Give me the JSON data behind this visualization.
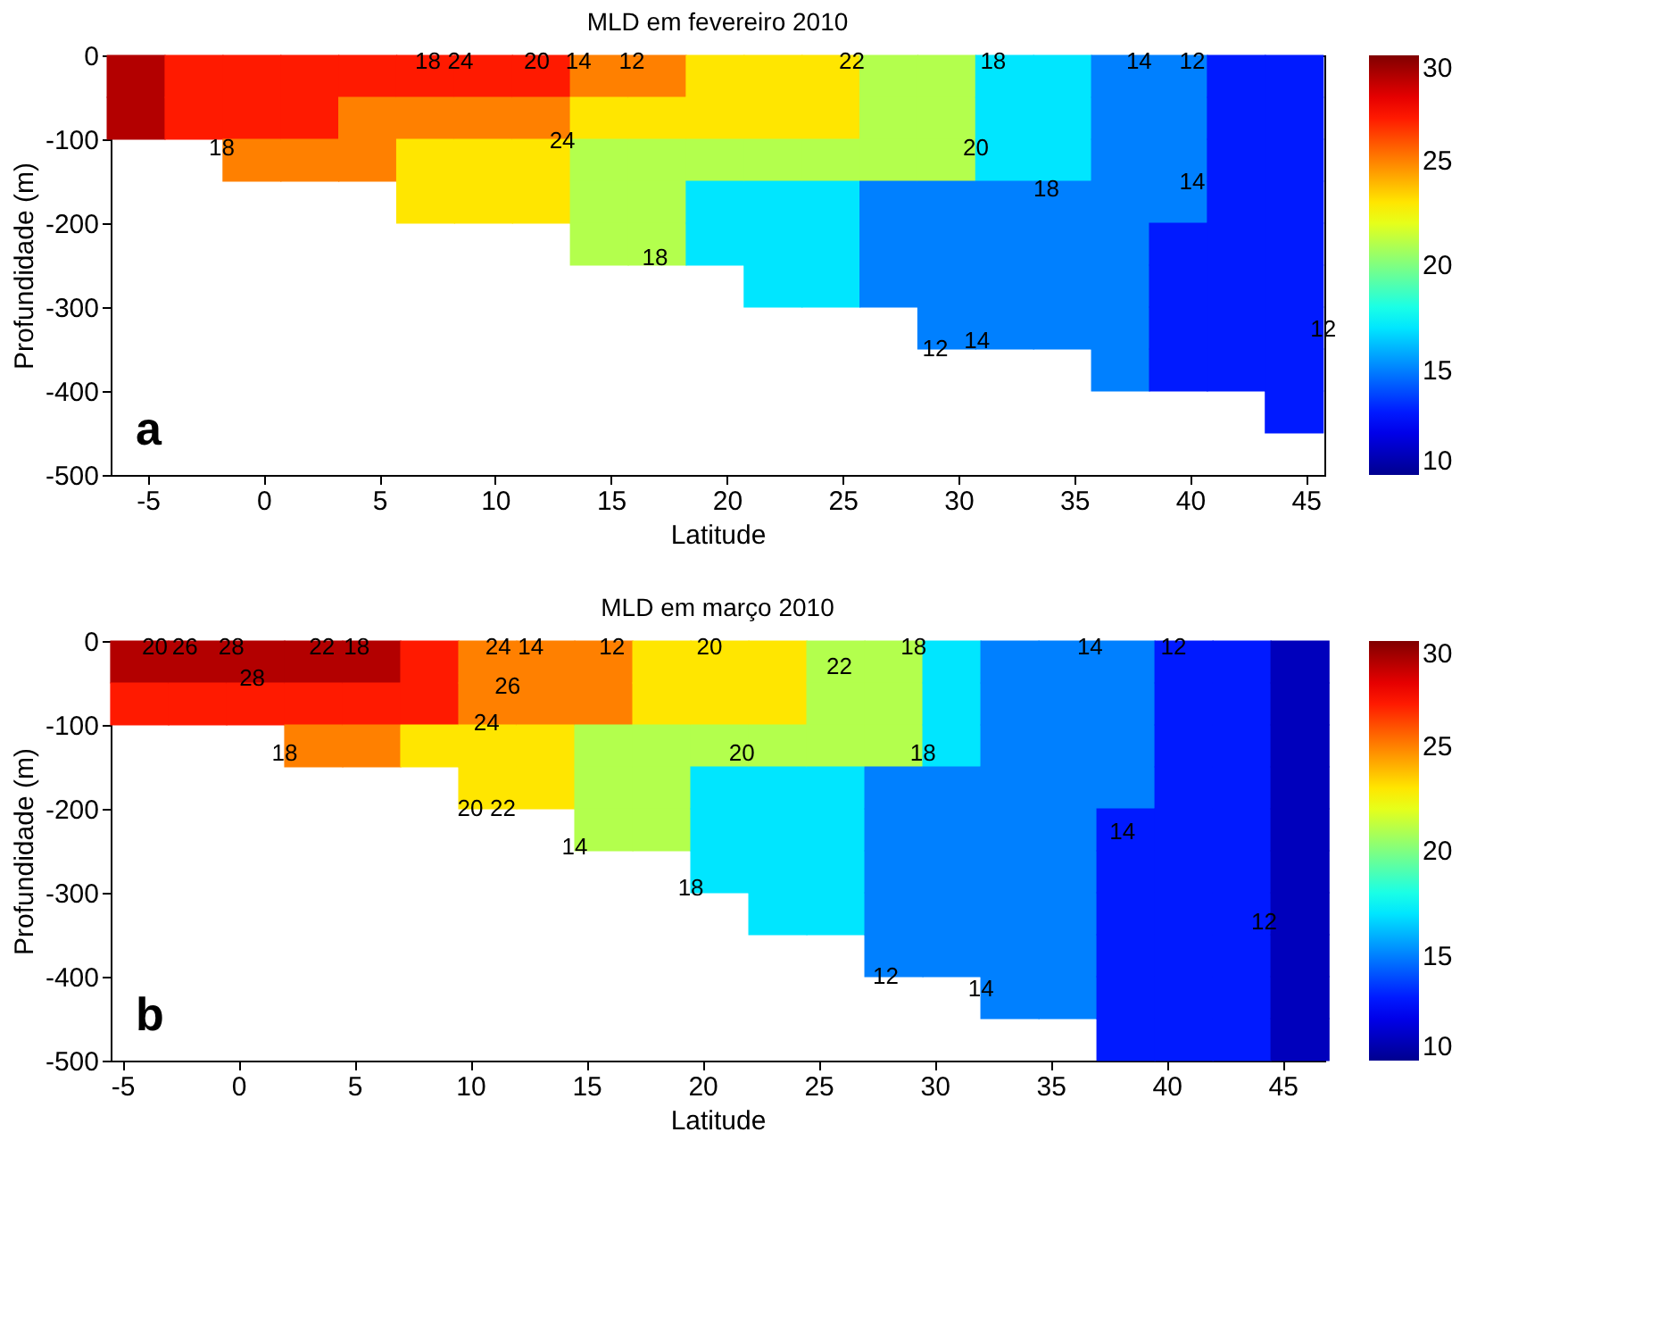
{
  "chart_data": [
    {
      "type": "scatter",
      "title": "MLD em fevereiro 2010",
      "xlabel": "Latitude",
      "ylabel": "Profundidade (m)",
      "marker": "square",
      "series": [
        {
          "x": [
            -5.5,
            -5.5,
            -3,
            -3,
            -0.5,
            -0.5,
            -0.5,
            2,
            2,
            2,
            4.5,
            4.5,
            4.5,
            7,
            7,
            7,
            7,
            9.5,
            9.5,
            9.5,
            9.5,
            12,
            12,
            12,
            12,
            14.5,
            14.5,
            14.5,
            14.5,
            14.5,
            17,
            17,
            17,
            17,
            17,
            19.5,
            19.5,
            19.5,
            19.5,
            19.5,
            22,
            22,
            22,
            22,
            22,
            22,
            24.5,
            24.5,
            24.5,
            24.5,
            24.5,
            24.5,
            27,
            27,
            27,
            27,
            27,
            27,
            29.5,
            29.5,
            29.5,
            29.5,
            29.5,
            29.5,
            29.5,
            32,
            32,
            32,
            32,
            32,
            32,
            32,
            34.5,
            34.5,
            34.5,
            34.5,
            34.5,
            34.5,
            34.5,
            37,
            37,
            37,
            37,
            37,
            37,
            37,
            37,
            39.5,
            39.5,
            39.5,
            39.5,
            39.5,
            39.5,
            39.5,
            39.5,
            42,
            42,
            42,
            42,
            42,
            42,
            42,
            42,
            44.5,
            44.5,
            44.5,
            44.5,
            44.5,
            44.5,
            44.5,
            44.5,
            44.5
          ],
          "values": [
            -25,
            -75,
            -25,
            -75,
            -25,
            -75,
            -125,
            -25,
            -75,
            -125,
            -25,
            -75,
            -125,
            -25,
            -75,
            -125,
            -175,
            -25,
            -75,
            -125,
            -175,
            -25,
            -75,
            -125,
            -175,
            -25,
            -75,
            -125,
            -175,
            -225,
            -25,
            -75,
            -125,
            -175,
            -225,
            -25,
            -75,
            -125,
            -175,
            -225,
            -25,
            -75,
            -125,
            -175,
            -225,
            -275,
            -25,
            -75,
            -125,
            -175,
            -225,
            -275,
            -25,
            -75,
            -125,
            -175,
            -225,
            -275,
            -25,
            -75,
            -125,
            -175,
            -225,
            -275,
            -325,
            -25,
            -75,
            -125,
            -175,
            -225,
            -275,
            -325,
            -25,
            -75,
            -125,
            -175,
            -225,
            -275,
            -325,
            -25,
            -75,
            -125,
            -175,
            -225,
            -275,
            -325,
            -375,
            -25,
            -75,
            -125,
            -175,
            -225,
            -275,
            -325,
            -375,
            -25,
            -75,
            -125,
            -175,
            -225,
            -275,
            -325,
            -375,
            -25,
            -75,
            -125,
            -175,
            -225,
            -275,
            -325,
            -375,
            -425
          ],
          "cvalues": [
            29,
            29,
            27,
            27,
            27,
            27,
            25,
            27,
            27,
            25,
            27,
            25,
            25,
            27,
            25,
            23,
            23,
            27,
            25,
            23,
            23,
            27,
            25,
            23,
            23,
            25,
            23,
            21,
            21,
            21,
            25,
            23,
            21,
            21,
            21,
            23,
            23,
            21,
            17,
            17,
            23,
            23,
            21,
            17,
            17,
            17,
            23,
            23,
            21,
            17,
            17,
            17,
            21,
            21,
            21,
            15,
            15,
            15,
            21,
            21,
            21,
            15,
            15,
            15,
            15,
            17,
            17,
            17,
            15,
            15,
            15,
            15,
            17,
            17,
            17,
            15,
            15,
            15,
            15,
            15,
            15,
            15,
            15,
            15,
            15,
            15,
            15,
            15,
            15,
            15,
            15,
            13,
            13,
            13,
            13,
            13,
            13,
            13,
            13,
            13,
            13,
            13,
            13,
            13,
            13,
            13,
            13,
            13,
            13,
            13,
            13,
            13
          ]
        }
      ],
      "xlim": [
        -6.6,
        45.8
      ],
      "xticks": [
        -5,
        0,
        5,
        10,
        15,
        20,
        25,
        30,
        35,
        40,
        45
      ],
      "ylim": [
        -500,
        0
      ],
      "yticks": [
        -500,
        -400,
        -300,
        -200,
        -100,
        0
      ],
      "clim": [
        10,
        30
      ],
      "cticks": [
        10,
        15,
        20,
        25,
        30
      ],
      "grid": false,
      "annotations": [
        "a",
        {
          "text": "18",
          "x": -1.8,
          "y": -111
        },
        {
          "text": "18",
          "x": 7.1,
          "y": -7
        },
        {
          "text": "24",
          "x": 8.5,
          "y": -7
        },
        {
          "text": "20",
          "x": 11.8,
          "y": -7
        },
        {
          "text": "14",
          "x": 13.6,
          "y": -7
        },
        {
          "text": "12",
          "x": 15.9,
          "y": -7
        },
        {
          "text": "24",
          "x": 12.9,
          "y": -102
        },
        {
          "text": "22",
          "x": 25.4,
          "y": -7
        },
        {
          "text": "18",
          "x": 31.5,
          "y": -7
        },
        {
          "text": "14",
          "x": 37.8,
          "y": -7
        },
        {
          "text": "12",
          "x": 40.1,
          "y": -7
        },
        {
          "text": "20",
          "x": 30.75,
          "y": -111
        },
        {
          "text": "18",
          "x": 33.8,
          "y": -160
        },
        {
          "text": "14",
          "x": 40.1,
          "y": -151
        },
        {
          "text": "18",
          "x": 16.9,
          "y": -241
        },
        {
          "text": "12",
          "x": 29,
          "y": -350
        },
        {
          "text": "14",
          "x": 30.8,
          "y": -340
        },
        {
          "text": "12",
          "x": 45.75,
          "y": -327
        }
      ]
    },
    {
      "type": "scatter",
      "title": "MLD em março 2010",
      "xlabel": "Latitude",
      "ylabel": "Profundidade (m)",
      "marker": "square",
      "series": [
        {
          "x": [
            -4.25,
            -4.25,
            -1.75,
            -1.75,
            0.75,
            0.75,
            3.25,
            3.25,
            3.25,
            5.75,
            5.75,
            5.75,
            8.25,
            8.25,
            8.25,
            10.75,
            10.75,
            10.75,
            10.75,
            13.25,
            13.25,
            13.25,
            13.25,
            15.75,
            15.75,
            15.75,
            15.75,
            15.75,
            18.25,
            18.25,
            18.25,
            18.25,
            18.25,
            20.75,
            20.75,
            20.75,
            20.75,
            20.75,
            20.75,
            23.25,
            23.25,
            23.25,
            23.25,
            23.25,
            23.25,
            23.25,
            25.75,
            25.75,
            25.75,
            25.75,
            25.75,
            25.75,
            25.75,
            28.25,
            28.25,
            28.25,
            28.25,
            28.25,
            28.25,
            28.25,
            28.25,
            30.75,
            30.75,
            30.75,
            30.75,
            30.75,
            30.75,
            30.75,
            30.75,
            33.25,
            33.25,
            33.25,
            33.25,
            33.25,
            33.25,
            33.25,
            33.25,
            33.25,
            35.75,
            35.75,
            35.75,
            35.75,
            35.75,
            35.75,
            35.75,
            35.75,
            35.75,
            38.25,
            38.25,
            38.25,
            38.25,
            38.25,
            38.25,
            38.25,
            38.25,
            38.25,
            38.25,
            40.75,
            40.75,
            40.75,
            40.75,
            40.75,
            40.75,
            40.75,
            40.75,
            40.75,
            40.75,
            43.25,
            43.25,
            43.25,
            43.25,
            43.25,
            43.25,
            43.25,
            43.25,
            43.25,
            43.25,
            45.75,
            45.75,
            45.75,
            45.75,
            45.75,
            45.75,
            45.75,
            45.75,
            45.75,
            45.75
          ],
          "values": [
            -25,
            -75,
            -25,
            -75,
            -25,
            -75,
            -25,
            -75,
            -125,
            -25,
            -75,
            -125,
            -25,
            -75,
            -125,
            -25,
            -75,
            -125,
            -175,
            -25,
            -75,
            -125,
            -175,
            -25,
            -75,
            -125,
            -175,
            -225,
            -25,
            -75,
            -125,
            -175,
            -225,
            -25,
            -75,
            -125,
            -175,
            -225,
            -275,
            -25,
            -75,
            -125,
            -175,
            -225,
            -275,
            -325,
            -25,
            -75,
            -125,
            -175,
            -225,
            -275,
            -325,
            -25,
            -75,
            -125,
            -175,
            -225,
            -275,
            -325,
            -375,
            -25,
            -75,
            -125,
            -175,
            -225,
            -275,
            -325,
            -375,
            -25,
            -75,
            -125,
            -175,
            -225,
            -275,
            -325,
            -375,
            -425,
            -25,
            -75,
            -125,
            -175,
            -225,
            -275,
            -325,
            -375,
            -425,
            -25,
            -75,
            -125,
            -175,
            -225,
            -275,
            -325,
            -375,
            -425,
            -475,
            -25,
            -75,
            -125,
            -175,
            -225,
            -275,
            -325,
            -375,
            -425,
            -475,
            -25,
            -75,
            -125,
            -175,
            -225,
            -275,
            -325,
            -375,
            -425,
            -475,
            -25,
            -75,
            -125,
            -175,
            -225,
            -275,
            -325,
            -375,
            -425,
            -475
          ],
          "cvalues": [
            29,
            27,
            29,
            27,
            29,
            27,
            29,
            27,
            25,
            29,
            27,
            25,
            27,
            27,
            23,
            25,
            25,
            23,
            23,
            25,
            25,
            23,
            23,
            25,
            25,
            21,
            21,
            21,
            23,
            23,
            21,
            21,
            21,
            23,
            23,
            21,
            17,
            17,
            17,
            23,
            23,
            21,
            17,
            17,
            17,
            17,
            21,
            21,
            21,
            17,
            17,
            17,
            17,
            21,
            21,
            21,
            15,
            15,
            15,
            15,
            15,
            17,
            17,
            17,
            15,
            15,
            15,
            15,
            15,
            15,
            15,
            15,
            15,
            15,
            15,
            15,
            15,
            15,
            15,
            15,
            15,
            15,
            15,
            15,
            15,
            15,
            15,
            15,
            15,
            15,
            15,
            13,
            13,
            13,
            13,
            13,
            13,
            13,
            13,
            13,
            13,
            13,
            13,
            13,
            13,
            13,
            13,
            13,
            13,
            13,
            13,
            13,
            13,
            13,
            13,
            13,
            13,
            11,
            11,
            11,
            11,
            11,
            11,
            11,
            11,
            11,
            11
          ]
        }
      ],
      "xlim": [
        -5.5,
        46.8
      ],
      "xticks": [
        -5,
        0,
        5,
        10,
        15,
        20,
        25,
        30,
        35,
        40,
        45
      ],
      "ylim": [
        -500,
        0
      ],
      "yticks": [
        -500,
        -400,
        -300,
        -200,
        -100,
        0
      ],
      "clim": [
        10,
        30
      ],
      "cticks": [
        10,
        15,
        20,
        25,
        30
      ],
      "grid": false,
      "annotations": [
        "b",
        {
          "text": "20",
          "x": -3.6,
          "y": -7
        },
        {
          "text": "26",
          "x": -2.3,
          "y": -7
        },
        {
          "text": "28",
          "x": -0.3,
          "y": -7
        },
        {
          "text": "28",
          "x": 0.6,
          "y": -45
        },
        {
          "text": "22",
          "x": 3.6,
          "y": -7
        },
        {
          "text": "18",
          "x": 5.1,
          "y": -7
        },
        {
          "text": "24",
          "x": 11.2,
          "y": -7
        },
        {
          "text": "14",
          "x": 12.6,
          "y": -7
        },
        {
          "text": "26",
          "x": 11.6,
          "y": -54
        },
        {
          "text": "12",
          "x": 16.1,
          "y": -7
        },
        {
          "text": "20",
          "x": 20.3,
          "y": -7
        },
        {
          "text": "18",
          "x": 29.1,
          "y": -7
        },
        {
          "text": "14",
          "x": 36.7,
          "y": -7
        },
        {
          "text": "12",
          "x": 40.3,
          "y": -7
        },
        {
          "text": "24",
          "x": 10.7,
          "y": -98
        },
        {
          "text": "18",
          "x": 2,
          "y": -134
        },
        {
          "text": "22",
          "x": 25.9,
          "y": -31
        },
        {
          "text": "20",
          "x": 21.7,
          "y": -134
        },
        {
          "text": "18",
          "x": 29.5,
          "y": -134
        },
        {
          "text": "20",
          "x": 10,
          "y": -200
        },
        {
          "text": "22",
          "x": 11.4,
          "y": -200
        },
        {
          "text": "14",
          "x": 14.5,
          "y": -246
        },
        {
          "text": "18",
          "x": 19.5,
          "y": -295
        },
        {
          "text": "14",
          "x": 38.1,
          "y": -228
        },
        {
          "text": "12",
          "x": 44.2,
          "y": -335
        },
        {
          "text": "12",
          "x": 27.9,
          "y": -400
        },
        {
          "text": "14",
          "x": 32,
          "y": -415
        }
      ]
    }
  ]
}
